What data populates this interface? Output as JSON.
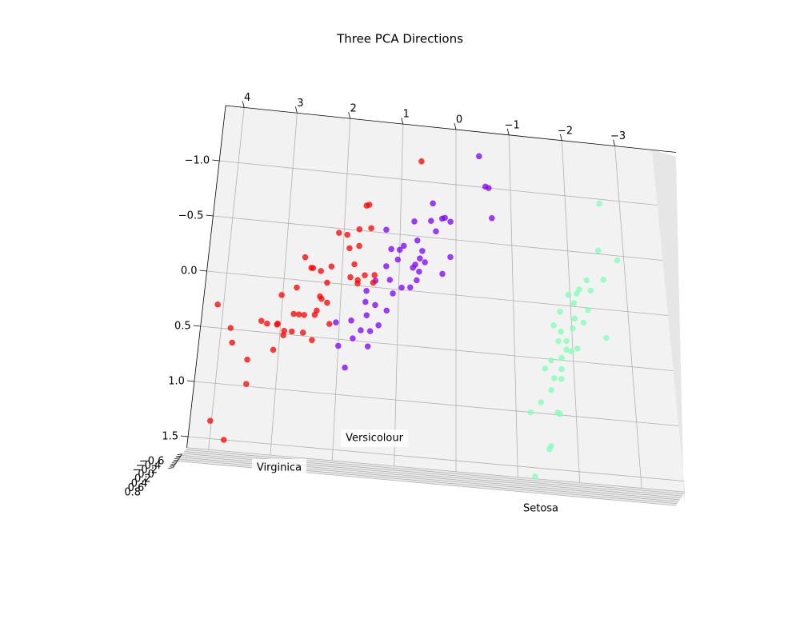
{
  "chart_data": {
    "type": "scatter3d",
    "title": "Three PCA Directions",
    "xlim": [
      -3.7,
      4.35
    ],
    "ylim": [
      -1.5,
      1.6
    ],
    "zlim": [
      -0.6,
      0.8
    ],
    "xticks": [
      {
        "value": -3,
        "label": "−3"
      },
      {
        "value": -2,
        "label": "−2"
      },
      {
        "value": -1,
        "label": "−1"
      },
      0,
      1,
      2,
      3,
      4
    ],
    "yticks": [
      {
        "value": -1,
        "label": "−1.0"
      },
      {
        "value": -0.5,
        "label": "−0.5"
      },
      {
        "value": 0,
        "label": "0.0"
      },
      0.5,
      {
        "value": 1,
        "label": "1.0"
      },
      1.5
    ],
    "zticks": [
      {
        "value": -0.6,
        "label": "−0.6"
      },
      {
        "value": -0.4,
        "label": "−0.4"
      },
      {
        "value": -0.2,
        "label": "−0.2"
      },
      {
        "value": 0,
        "label": "0.0"
      },
      0.2,
      0.4,
      0.6,
      0.8
    ],
    "grid": true,
    "series": [
      {
        "name": "Setosa",
        "color": "#80ffb4",
        "x": [
          -2.63,
          -2.55,
          -2.88,
          -2.61,
          -2.31,
          -2.37,
          -2.17,
          -1.97,
          -2.12,
          -2.06,
          -2.3,
          -2.21,
          -1.81,
          -2.06,
          -1.69,
          -1.81,
          -2.02,
          -2.59,
          -1.9,
          -1.76,
          -2.08,
          -1.97,
          -1.89,
          -1.62,
          -1.8,
          -1.51,
          -1.79,
          -1.66,
          -1.78,
          -1.6,
          -1.42,
          -1.24,
          -1.69,
          -1.73,
          -1.56,
          -1.53,
          -1.28
        ],
        "y": [
          -0.96,
          -0.53,
          -0.46,
          -0.27,
          -0.25,
          -0.16,
          -0.16,
          -0.1,
          -0.12,
          -0.03,
          0.02,
          0.14,
          0.06,
          0.11,
          0.19,
          0.24,
          0.2,
          0.26,
          0.32,
          0.33,
          0.38,
          0.41,
          0.4,
          0.51,
          0.48,
          0.59,
          0.58,
          0.67,
          0.67,
          0.78,
          0.9,
          1.0,
          0.98,
          0.99,
          1.29,
          1.32,
          1.58
        ]
      },
      {
        "name": "Versicolour",
        "color": "#8000ff",
        "x": [
          -0.43,
          -0.54,
          -0.6,
          -0.65,
          0.42,
          0.75,
          0.45,
          0.25,
          0.2,
          0.1,
          0.36,
          1.25,
          0.69,
          0.93,
          1.15,
          1.0,
          0.6,
          0.64,
          0.72,
          0.55,
          0.1,
          1.03,
          0.76,
          0.24,
          0.65,
          1.23,
          1.41,
          1.16,
          1.56,
          1.57,
          0.95,
          0.8,
          0.69,
          1.1,
          1.2,
          1.4,
          1.54,
          2.06,
          1.8,
          1.33,
          1.47,
          1.63,
          1.76,
          1.5,
          2.0,
          1.87
        ],
        "y": [
          -1.28,
          -1.01,
          -1.0,
          -0.73,
          -0.81,
          -0.63,
          -0.65,
          -0.68,
          -0.69,
          -0.66,
          -0.56,
          -0.53,
          -0.46,
          -0.4,
          -0.36,
          -0.36,
          -0.37,
          -0.3,
          -0.24,
          -0.27,
          -0.34,
          -0.27,
          -0.21,
          -0.18,
          -0.18,
          -0.2,
          -0.06,
          -0.08,
          0.04,
          0.14,
          -0.02,
          -0.03,
          -0.1,
          0.04,
          0.2,
          0.16,
          0.26,
          0.35,
          0.32,
          0.34,
          0.4,
          0.4,
          0.48,
          0.54,
          0.56,
          0.75
        ]
      },
      {
        "name": "Virginica",
        "color": "#ff0000",
        "x": [
          0.64,
          1.57,
          1.62,
          1.73,
          1.52,
          1.94,
          2.09,
          1.89,
          1.72,
          2.66,
          2.54,
          2.51,
          2.37,
          2.19,
          1.79,
          1.6,
          1.85,
          1.72,
          1.43,
          1.45,
          1.72,
          2.25,
          2.77,
          3.02,
          2.36,
          2.33,
          2.23,
          2.4,
          2.43,
          2.61,
          2.79,
          2.7,
          3.05,
          3.06,
          2.93,
          2.94,
          2.8,
          2.61,
          2.45,
          2.17,
          3.33,
          3.23,
          4.1,
          3.84,
          3.79,
          3.09,
          3.51,
          3.49,
          4.02,
          3.77
        ],
        "y": [
          -1.18,
          -0.74,
          -0.73,
          -0.51,
          -0.53,
          -0.45,
          -0.46,
          -0.33,
          -0.36,
          -0.21,
          -0.12,
          -0.12,
          -0.1,
          -0.15,
          -0.19,
          -0.1,
          -0.07,
          -0.05,
          -0.11,
          -0.04,
          -0.02,
          0.0,
          0.07,
          0.15,
          0.13,
          0.15,
          0.18,
          0.26,
          0.3,
          0.31,
          0.31,
          0.31,
          0.41,
          0.42,
          0.47,
          0.51,
          0.47,
          0.47,
          0.53,
          0.37,
          0.4,
          0.42,
          0.29,
          0.49,
          0.62,
          0.65,
          0.76,
          0.98,
          1.34,
          1.5
        ]
      }
    ]
  }
}
